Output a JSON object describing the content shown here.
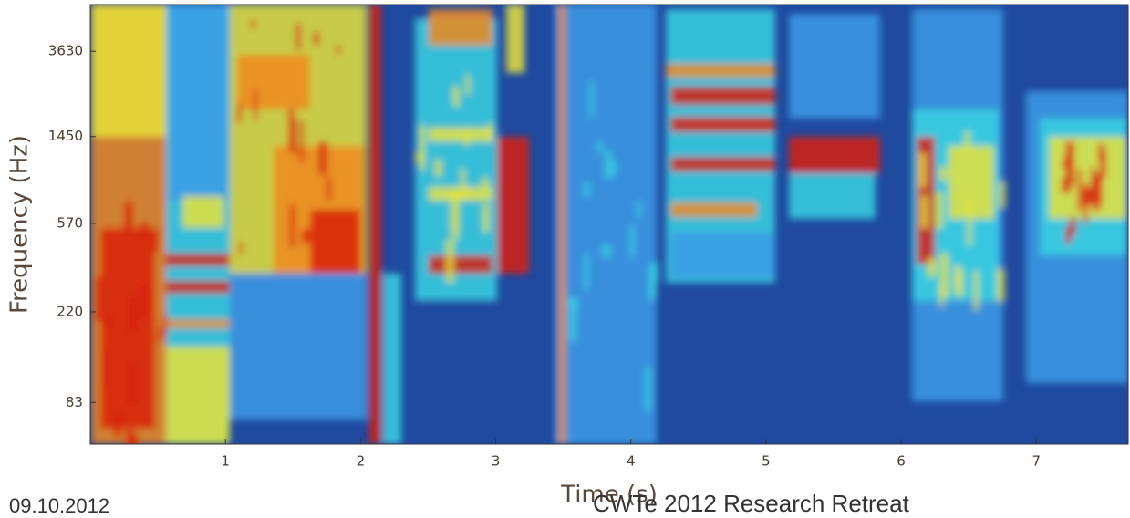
{
  "chart_data": {
    "type": "spectrogram",
    "x_label": "Time (s)",
    "y_label": "Frequency (Hz)",
    "xlim": [
      0,
      7.68
    ],
    "xticks": [
      1,
      2,
      3,
      4,
      5,
      6,
      7
    ],
    "ylim": [
      53,
      6000
    ],
    "yticks": [
      83,
      220,
      570,
      1450,
      3630
    ],
    "y_scale": "log"
  },
  "footer": {
    "date": "09.10.2012",
    "event": "CWTe 2012 Research Retreat"
  }
}
